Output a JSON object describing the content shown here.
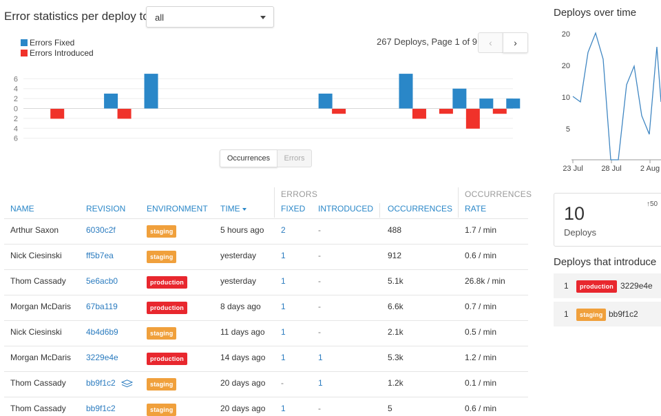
{
  "header": {
    "title": "Error statistics per deploy to:",
    "environment_select": "all"
  },
  "legend": {
    "fixed": "Errors Fixed",
    "introduced": "Errors Introduced"
  },
  "pagination": {
    "summary": "267 Deploys, Page 1 of 9",
    "prev": "‹",
    "next": "›"
  },
  "colors": {
    "fixed": "#2a87c8",
    "introduced": "#f0322a",
    "staging": "#f0a03c",
    "production": "#e8272e",
    "link": "#2a7bbf"
  },
  "chart_data": {
    "type": "bar",
    "y_ticks": [
      "6",
      "4",
      "2",
      "0",
      "2",
      "4",
      "6"
    ],
    "ylim": [
      -6,
      7
    ],
    "series": [
      {
        "name": "Errors Fixed",
        "values": [
          0,
          0,
          0,
          0,
          0,
          3,
          0,
          0,
          7,
          0,
          0,
          0,
          0,
          0,
          0,
          0,
          0,
          0,
          0,
          0,
          0,
          3,
          0,
          0,
          0,
          0,
          0,
          7,
          0,
          0,
          0,
          4,
          0,
          2,
          0,
          2
        ]
      },
      {
        "name": "Errors Introduced",
        "values": [
          0,
          2,
          0,
          0,
          0,
          0,
          2,
          0,
          0,
          0,
          0,
          0,
          0,
          0,
          0,
          0,
          0,
          0,
          0,
          0,
          0,
          0,
          1,
          0,
          0,
          0,
          0,
          0,
          2,
          0,
          1,
          0,
          4,
          0,
          1,
          0
        ]
      }
    ]
  },
  "chart_toggle": {
    "occurrences": "Occurrences",
    "errors": "Errors"
  },
  "table": {
    "group_errors": "ERRORS",
    "group_occurrences": "OCCURRENCES",
    "columns": [
      "NAME",
      "REVISION",
      "ENVIRONMENT",
      "TIME",
      "FIXED",
      "INTRODUCED",
      "OCCURRENCES",
      "RATE"
    ],
    "rows": [
      {
        "name": "Arthur Saxon",
        "revision": "6030c2f",
        "env": "staging",
        "time": "5 hours ago",
        "fixed": "2",
        "introduced": "-",
        "occurrences": "488",
        "rate": "1.7 / min"
      },
      {
        "name": "Nick Ciesinski",
        "revision": "ff5b7ea",
        "env": "staging",
        "time": "yesterday",
        "fixed": "1",
        "introduced": "-",
        "occurrences": "912",
        "rate": "0.6 / min"
      },
      {
        "name": "Thom Cassady",
        "revision": "5e6acb0",
        "env": "production",
        "time": "yesterday",
        "fixed": "1",
        "introduced": "-",
        "occurrences": "5.1k",
        "rate": "26.8k / min"
      },
      {
        "name": "Morgan McDaris",
        "revision": "67ba119",
        "env": "production",
        "time": "8 days ago",
        "fixed": "1",
        "introduced": "-",
        "occurrences": "6.6k",
        "rate": "0.7 / min"
      },
      {
        "name": "Nick Ciesinski",
        "revision": "4b4d6b9",
        "env": "staging",
        "time": "11 days ago",
        "fixed": "1",
        "introduced": "-",
        "occurrences": "2.1k",
        "rate": "0.5 / min"
      },
      {
        "name": "Morgan McDaris",
        "revision": "3229e4e",
        "env": "production",
        "time": "14 days ago",
        "fixed": "1",
        "introduced": "1",
        "occurrences": "5.3k",
        "rate": "1.2 / min"
      },
      {
        "name": "Thom Cassady",
        "revision": "bb9f1c2",
        "env": "staging",
        "time": "20 days ago",
        "fixed": "-",
        "introduced": "1",
        "occurrences": "1.2k",
        "rate": "0.1 / min",
        "layers_icon": true
      },
      {
        "name": "Thom Cassady",
        "revision": "bb9f1c2",
        "env": "staging",
        "time": "20 days ago",
        "fixed": "1",
        "introduced": "-",
        "occurrences": "5",
        "rate": "0.6 / min"
      }
    ]
  },
  "right": {
    "deploys_title": "Deploys over time",
    "line_chart": {
      "y_ticks": [
        "20",
        "20",
        "10",
        "5"
      ],
      "x_ticks": [
        "23 Jul",
        "28 Jul",
        "2 Aug"
      ]
    },
    "stat": {
      "value": "10",
      "label": "Deploys",
      "delta": "↑50"
    },
    "introduced_title": "Deploys that introduce",
    "introduced": [
      {
        "count": "1",
        "env": "production",
        "revision": "3229e4e"
      },
      {
        "count": "1",
        "env": "staging",
        "revision": "bb9f1c2"
      }
    ]
  }
}
